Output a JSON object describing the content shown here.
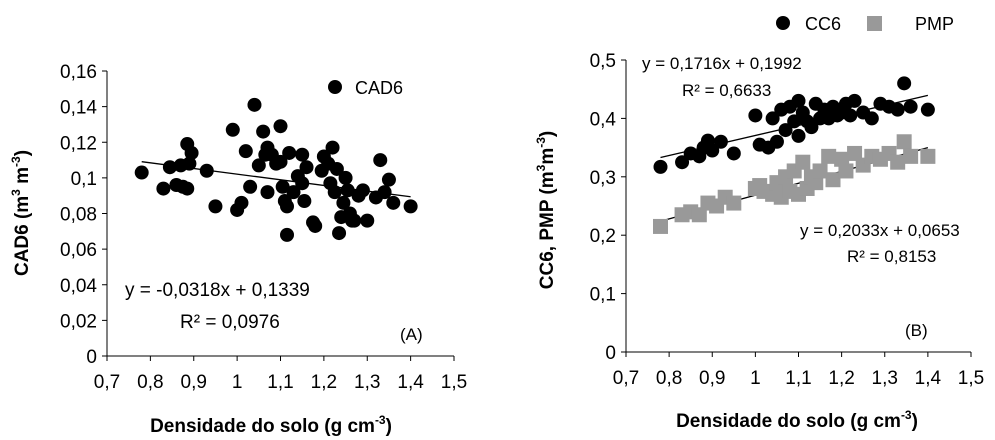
{
  "chart_data": [
    {
      "type": "scatter",
      "xlabel": "Densidade do solo (g cm",
      "xlabel_sup": "-3",
      "xlabel_end": ")",
      "ylabel": "CAD6 (m",
      "ylabel_sup1": "3",
      "ylabel_mid": " m",
      "ylabel_sup2": "-3",
      "ylabel_end": ")",
      "xlim": [
        0.7,
        1.5
      ],
      "ylim": [
        0,
        0.16
      ],
      "x_ticks": [
        "0,7",
        "0,8",
        "0,9",
        "1",
        "1,1",
        "1,2",
        "1,3",
        "1,4",
        "1,5"
      ],
      "y_ticks": [
        "0",
        "0,02",
        "0,04",
        "0,06",
        "0,08",
        "0,1",
        "0,12",
        "0,14",
        "0,16"
      ],
      "panel_label": "(A)",
      "grid": false,
      "legend_position": "top-right",
      "series": [
        {
          "name": "CAD6",
          "marker": "circle",
          "color": "#000000",
          "points": [
            [
              0.78,
              0.103
            ],
            [
              0.83,
              0.094
            ],
            [
              0.845,
              0.106
            ],
            [
              0.86,
              0.096
            ],
            [
              0.87,
              0.107
            ],
            [
              0.875,
              0.095
            ],
            [
              0.885,
              0.094
            ],
            [
              0.885,
              0.119
            ],
            [
              0.89,
              0.108
            ],
            [
              0.895,
              0.114
            ],
            [
              0.93,
              0.104
            ],
            [
              0.95,
              0.084
            ],
            [
              0.99,
              0.127
            ],
            [
              1.0,
              0.082
            ],
            [
              1.01,
              0.086
            ],
            [
              1.02,
              0.115
            ],
            [
              1.03,
              0.095
            ],
            [
              1.04,
              0.141
            ],
            [
              1.05,
              0.107
            ],
            [
              1.06,
              0.126
            ],
            [
              1.065,
              0.113
            ],
            [
              1.07,
              0.117
            ],
            [
              1.07,
              0.092
            ],
            [
              1.08,
              0.113
            ],
            [
              1.09,
              0.108
            ],
            [
              1.1,
              0.129
            ],
            [
              1.1,
              0.109
            ],
            [
              1.105,
              0.095
            ],
            [
              1.11,
              0.087
            ],
            [
              1.115,
              0.084
            ],
            [
              1.115,
              0.068
            ],
            [
              1.12,
              0.114
            ],
            [
              1.13,
              0.092
            ],
            [
              1.14,
              0.101
            ],
            [
              1.15,
              0.097
            ],
            [
              1.15,
              0.113
            ],
            [
              1.155,
              0.087
            ],
            [
              1.16,
              0.106
            ],
            [
              1.175,
              0.075
            ],
            [
              1.18,
              0.073
            ],
            [
              1.195,
              0.104
            ],
            [
              1.2,
              0.112
            ],
            [
              1.21,
              0.108
            ],
            [
              1.215,
              0.097
            ],
            [
              1.22,
              0.117
            ],
            [
              1.225,
              0.092
            ],
            [
              1.23,
              0.105
            ],
            [
              1.235,
              0.069
            ],
            [
              1.24,
              0.078
            ],
            [
              1.245,
              0.086
            ],
            [
              1.25,
              0.1
            ],
            [
              1.255,
              0.093
            ],
            [
              1.26,
              0.08
            ],
            [
              1.265,
              0.076
            ],
            [
              1.27,
              0.076
            ],
            [
              1.28,
              0.09
            ],
            [
              1.29,
              0.093
            ],
            [
              1.3,
              0.076
            ],
            [
              1.32,
              0.089
            ],
            [
              1.33,
              0.11
            ],
            [
              1.34,
              0.092
            ],
            [
              1.35,
              0.099
            ],
            [
              1.36,
              0.086
            ],
            [
              1.4,
              0.084
            ]
          ]
        }
      ],
      "trendlines": [
        {
          "series": "CAD6",
          "slope": -0.0318,
          "intercept": 0.1339,
          "x_range": [
            0.78,
            1.4
          ],
          "color": "#000000"
        }
      ],
      "annotations": {
        "equation": "y = -0,0318x + 0,1339",
        "r2": "R² = 0,0976"
      }
    },
    {
      "type": "scatter",
      "xlabel": "Densidade do solo (g cm",
      "xlabel_sup": "-3",
      "xlabel_end": ")",
      "ylabel": "CC6, PMP (m",
      "ylabel_sup1": "3",
      "ylabel_mid": "m",
      "ylabel_sup2": "-3",
      "ylabel_end": ")",
      "xlim": [
        0.7,
        1.5
      ],
      "ylim": [
        0,
        0.5
      ],
      "x_ticks": [
        "0,7",
        "0,8",
        "0,9",
        "1",
        "1,1",
        "1,2",
        "1,3",
        "1,4",
        "1,5"
      ],
      "y_ticks": [
        "0",
        "0,1",
        "0,2",
        "0,3",
        "0,4",
        "0,5"
      ],
      "panel_label": "(B)",
      "grid": false,
      "legend_position": "top",
      "series": [
        {
          "name": "CC6",
          "marker": "circle",
          "color": "#000000",
          "points": [
            [
              0.78,
              0.317
            ],
            [
              0.83,
              0.325
            ],
            [
              0.85,
              0.34
            ],
            [
              0.87,
              0.335
            ],
            [
              0.88,
              0.35
            ],
            [
              0.89,
              0.362
            ],
            [
              0.9,
              0.345
            ],
            [
              0.92,
              0.36
            ],
            [
              0.95,
              0.34
            ],
            [
              1.0,
              0.405
            ],
            [
              1.01,
              0.355
            ],
            [
              1.03,
              0.35
            ],
            [
              1.04,
              0.4
            ],
            [
              1.05,
              0.36
            ],
            [
              1.06,
              0.415
            ],
            [
              1.07,
              0.38
            ],
            [
              1.08,
              0.42
            ],
            [
              1.09,
              0.395
            ],
            [
              1.1,
              0.43
            ],
            [
              1.1,
              0.37
            ],
            [
              1.11,
              0.41
            ],
            [
              1.12,
              0.395
            ],
            [
              1.13,
              0.385
            ],
            [
              1.14,
              0.425
            ],
            [
              1.15,
              0.4
            ],
            [
              1.16,
              0.415
            ],
            [
              1.17,
              0.4
            ],
            [
              1.18,
              0.42
            ],
            [
              1.19,
              0.405
            ],
            [
              1.2,
              0.41
            ],
            [
              1.21,
              0.425
            ],
            [
              1.22,
              0.405
            ],
            [
              1.23,
              0.43
            ],
            [
              1.25,
              0.41
            ],
            [
              1.27,
              0.4
            ],
            [
              1.29,
              0.425
            ],
            [
              1.31,
              0.42
            ],
            [
              1.33,
              0.415
            ],
            [
              1.345,
              0.46
            ],
            [
              1.36,
              0.42
            ],
            [
              1.4,
              0.415
            ]
          ]
        },
        {
          "name": "PMP",
          "marker": "square",
          "color": "#999999",
          "points": [
            [
              0.78,
              0.215
            ],
            [
              0.83,
              0.235
            ],
            [
              0.85,
              0.24
            ],
            [
              0.87,
              0.235
            ],
            [
              0.89,
              0.255
            ],
            [
              0.91,
              0.25
            ],
            [
              0.93,
              0.265
            ],
            [
              0.95,
              0.255
            ],
            [
              1.0,
              0.28
            ],
            [
              1.01,
              0.285
            ],
            [
              1.02,
              0.275
            ],
            [
              1.04,
              0.27
            ],
            [
              1.05,
              0.29
            ],
            [
              1.06,
              0.265
            ],
            [
              1.07,
              0.3
            ],
            [
              1.08,
              0.275
            ],
            [
              1.09,
              0.31
            ],
            [
              1.1,
              0.27
            ],
            [
              1.11,
              0.325
            ],
            [
              1.12,
              0.28
            ],
            [
              1.13,
              0.3
            ],
            [
              1.14,
              0.29
            ],
            [
              1.15,
              0.31
            ],
            [
              1.17,
              0.335
            ],
            [
              1.18,
              0.295
            ],
            [
              1.2,
              0.33
            ],
            [
              1.21,
              0.31
            ],
            [
              1.23,
              0.34
            ],
            [
              1.25,
              0.32
            ],
            [
              1.27,
              0.335
            ],
            [
              1.29,
              0.33
            ],
            [
              1.31,
              0.34
            ],
            [
              1.33,
              0.325
            ],
            [
              1.345,
              0.36
            ],
            [
              1.36,
              0.335
            ],
            [
              1.4,
              0.335
            ]
          ]
        }
      ],
      "trendlines": [
        {
          "series": "CC6",
          "slope": 0.1716,
          "intercept": 0.1992,
          "x_range": [
            0.78,
            1.4
          ],
          "color": "#000000"
        },
        {
          "series": "PMP",
          "slope": 0.2033,
          "intercept": 0.0653,
          "x_range": [
            0.78,
            1.4
          ],
          "color": "#000000"
        }
      ],
      "annotations": {
        "cc6_equation": "y = 0,1716x + 0,1992",
        "cc6_r2": "R² = 0,6633",
        "pmp_equation": "y = 0,2033x + 0,0653",
        "pmp_r2": "R² = 0,8153"
      }
    }
  ]
}
